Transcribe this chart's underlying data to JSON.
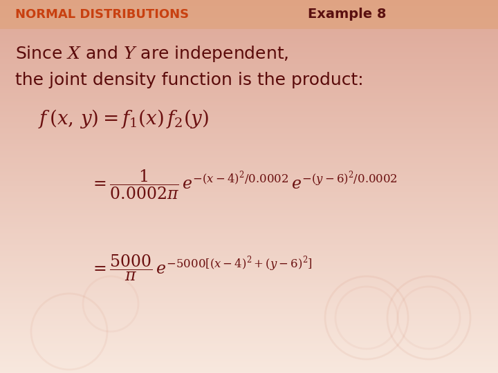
{
  "bg_top": "#f8e8e0",
  "bg_bottom": "#e8a888",
  "header_band_color": "#e8b8a0",
  "header_text": "NORMAL DISTRIBUTIONS",
  "header_text_color": "#c84010",
  "example_text": "Example 8",
  "example_text_color": "#5a1010",
  "math_color": "#6b1010",
  "body_text_color": "#5a0a0a",
  "header_fontsize": 13,
  "body_fontsize": 18,
  "math_fontsize": 17
}
